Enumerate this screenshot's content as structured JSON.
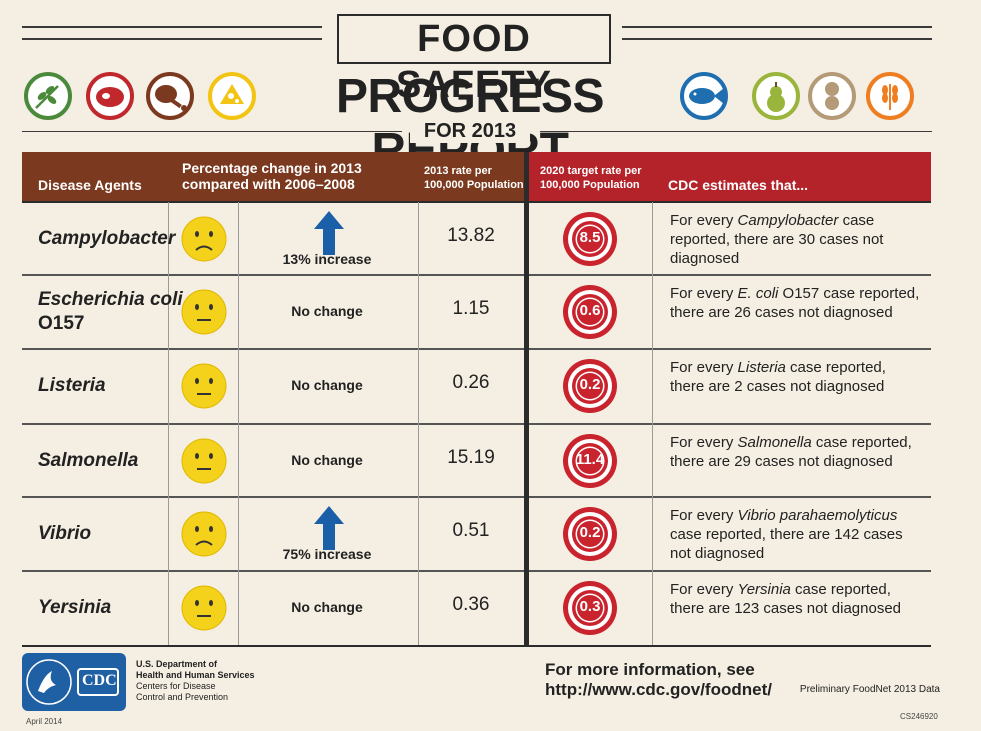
{
  "header": {
    "title_line1": "FOOD SAFETY",
    "title_line2": "PROGRESS REPORT",
    "title_line3": "FOR 2013"
  },
  "food_icons": [
    {
      "name": "herb-icon",
      "color": "#4a8a3a"
    },
    {
      "name": "meat-icon",
      "color": "#c0282d"
    },
    {
      "name": "poultry-leg-icon",
      "color": "#7b3a1f"
    },
    {
      "name": "cheese-icon",
      "color": "#f2c413"
    },
    {
      "name": "fish-icon",
      "color": "#1f6fb0"
    },
    {
      "name": "pear-icon",
      "color": "#9ab53b"
    },
    {
      "name": "peanut-icon",
      "color": "#b59a78"
    },
    {
      "name": "wheat-icon",
      "color": "#ef7d22"
    }
  ],
  "columns": {
    "agents": "Disease Agents",
    "change": "Percentage change in 2013 compared with 2006–2008",
    "rate": "2013 rate per 100,000 Population",
    "target": "2020 target rate per 100,000 Population",
    "estimates": "CDC estimates that..."
  },
  "rows": [
    {
      "agent": "Campylobacter",
      "face": "sad",
      "arrow": true,
      "change": "13% increase",
      "rate": "13.82",
      "target": "8.5",
      "est_pre": "For every ",
      "est_italic": "Campylobacter",
      "est_post": " case reported, there are 30 cases not diagnosed"
    },
    {
      "agent": "Escherichia coli",
      "agent_suffix": "O157",
      "face": "neutral",
      "arrow": false,
      "change": "No change",
      "rate": "1.15",
      "target": "0.6",
      "est_pre": "For every ",
      "est_italic": "E. coli",
      "est_post": " O157 case reported, there are 26 cases not diagnosed"
    },
    {
      "agent": "Listeria",
      "face": "neutral",
      "arrow": false,
      "change": "No change",
      "rate": "0.26",
      "target": "0.2",
      "est_pre": "For every ",
      "est_italic": "Listeria",
      "est_post": " case reported, there are 2 cases not diagnosed"
    },
    {
      "agent": "Salmonella",
      "face": "neutral",
      "arrow": false,
      "change": "No change",
      "rate": "15.19",
      "target": "11.4",
      "est_pre": "For every ",
      "est_italic": "Salmonella",
      "est_post": " case reported, there are 29 cases not diagnosed"
    },
    {
      "agent": "Vibrio",
      "face": "sad",
      "arrow": true,
      "change": "75% increase",
      "rate": "0.51",
      "target": "0.2",
      "est_pre": "For every ",
      "est_italic": "Vibrio parahaemolyticus",
      "est_post": " case reported, there are 142 cases not diagnosed"
    },
    {
      "agent": "Yersinia",
      "face": "neutral",
      "arrow": false,
      "change": "No change",
      "rate": "0.36",
      "target": "0.3",
      "est_pre": "For every ",
      "est_italic": "Yersinia",
      "est_post": " case reported, there are 123 cases not diagnosed"
    }
  ],
  "footer": {
    "cdc_logo_text": "CDC",
    "dept_line1": "U.S. Department of",
    "dept_line2": "Health and Human Services",
    "dept_line3": "Centers for Disease",
    "dept_line4": "Control and Prevention",
    "more_info": "For more information, see http://www.cdc.gov/foodnet/",
    "prelim": "Preliminary FoodNet 2013 Data",
    "date": "April 2014",
    "code": "CS246920"
  },
  "colors": {
    "brown_header": "#7b3a1f",
    "red_header": "#b4222a",
    "face_yellow": "#f4d11a",
    "arrow_blue": "#1a5fa8",
    "target_red": "#c9232d"
  }
}
